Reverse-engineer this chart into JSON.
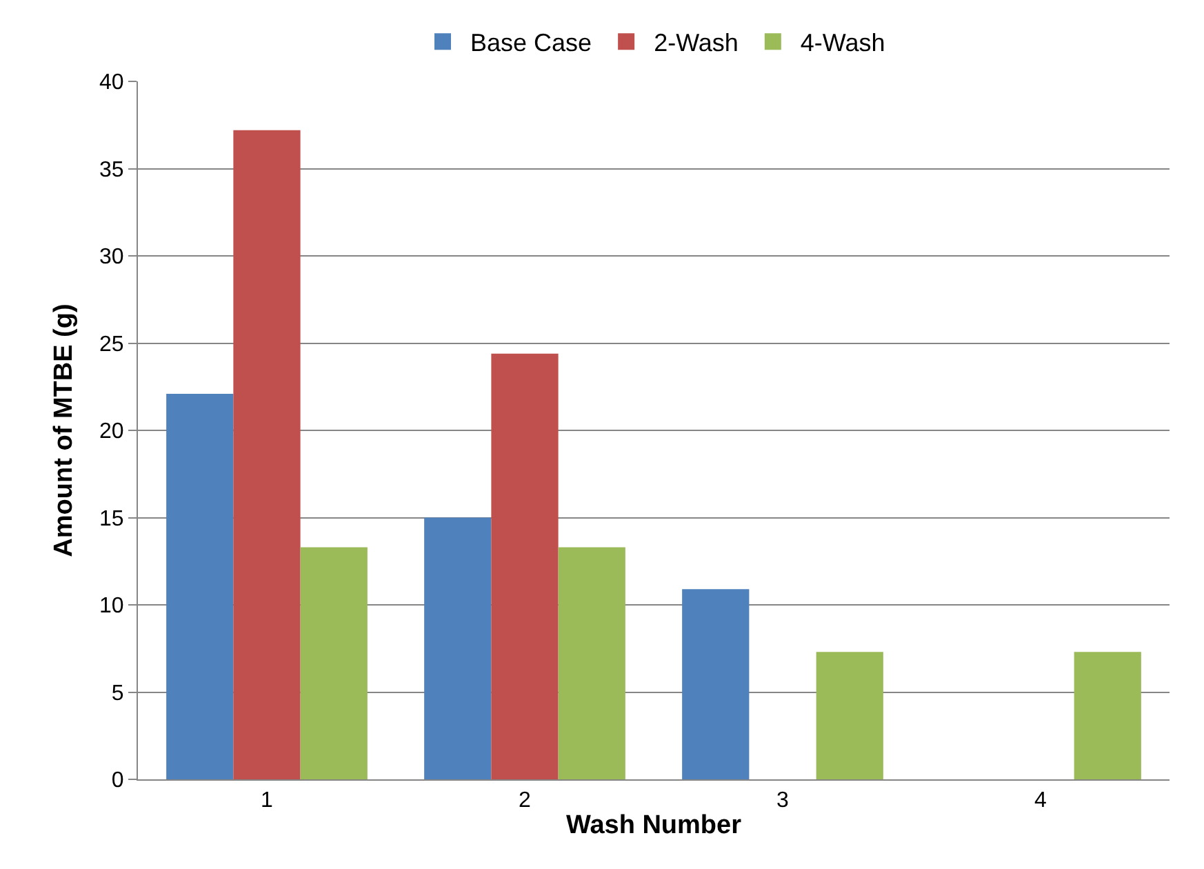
{
  "chart_data": {
    "type": "bar",
    "xlabel": "Wash Number",
    "ylabel": "Amount of MTBE (g)",
    "categories": [
      "1",
      "2",
      "3",
      "4"
    ],
    "series": [
      {
        "name": "Base Case",
        "color": "#4f81bd",
        "values": [
          22.1,
          15.0,
          10.9,
          null
        ]
      },
      {
        "name": "2-Wash",
        "color": "#c0504d",
        "values": [
          37.2,
          24.4,
          null,
          null
        ]
      },
      {
        "name": "4-Wash",
        "color": "#9bbb59",
        "values": [
          13.3,
          13.3,
          7.3,
          7.3
        ]
      }
    ],
    "ylim": [
      0,
      40
    ],
    "yticks": [
      0,
      5,
      10,
      15,
      20,
      25,
      30,
      35,
      40
    ],
    "grid": "y",
    "legend": "top"
  }
}
